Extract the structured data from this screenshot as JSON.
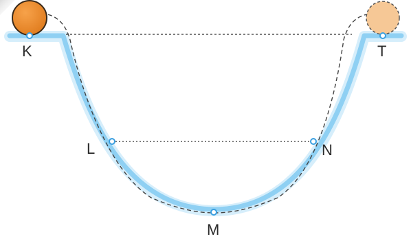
{
  "diagram": {
    "points": {
      "k": "K",
      "t": "T",
      "l": "L",
      "n": "N",
      "m": "M"
    },
    "colors": {
      "track": "#8fd0f3",
      "track_glow": "#d6eefb",
      "ball_start": "#e8892a",
      "ball_end": "#f6c896",
      "dot": "#3a9fe0",
      "dashed_path": "#444444"
    },
    "elements": {
      "ball_at_start": "solid-ball-at-k",
      "ball_at_end": "dashed-ghost-ball-at-t",
      "track": "u-shaped-ramp",
      "level_lines": "dotted-horizontal-reference-lines"
    }
  }
}
